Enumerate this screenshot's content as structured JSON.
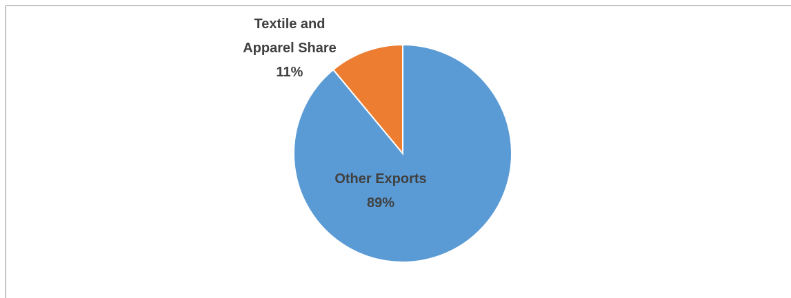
{
  "chart_data": {
    "type": "pie",
    "categories": [
      "Other Exports",
      "Textile and Apparel Share"
    ],
    "values": [
      89,
      11
    ],
    "value_labels": [
      "89%",
      "11%"
    ],
    "colors": [
      "#5b9bd5",
      "#ed7d31"
    ]
  }
}
